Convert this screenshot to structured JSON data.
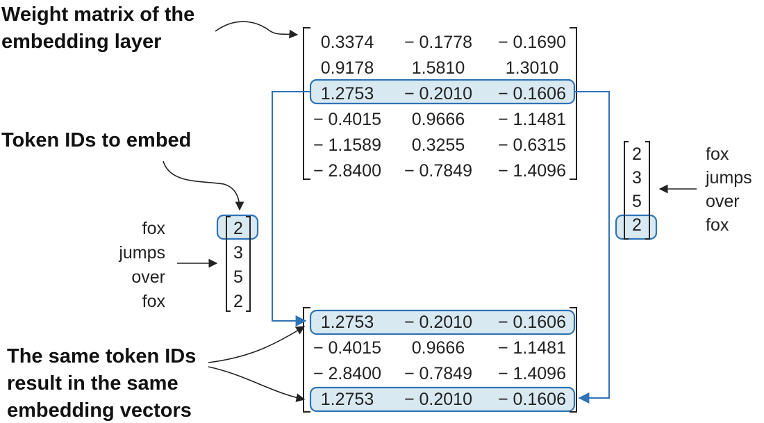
{
  "captions": {
    "weight_matrix": [
      "Weight matrix of the",
      "embedding layer"
    ],
    "token_ids": [
      "Token IDs to embed"
    ],
    "same_vectors": [
      "The same token IDs",
      "result in the same",
      "embedding vectors"
    ]
  },
  "weight_matrix": [
    [
      "0.3374",
      "− 0.1778",
      "− 0.1690"
    ],
    [
      "0.9178",
      "1.5810",
      "1.3010"
    ],
    [
      "1.2753",
      "− 0.2010",
      "− 0.1606"
    ],
    [
      "− 0.4015",
      "0.9666",
      "− 1.1481"
    ],
    [
      "− 1.1589",
      "0.3255",
      "− 0.6315"
    ],
    [
      "− 2.8400",
      "− 0.7849",
      "− 1.4096"
    ]
  ],
  "weight_highlight_row": 2,
  "tokens_left": {
    "words": [
      "fox",
      "jumps",
      "over",
      "fox"
    ],
    "ids": [
      "2",
      "3",
      "5",
      "2"
    ],
    "highlight_index": 0
  },
  "tokens_right": {
    "words": [
      "fox",
      "jumps",
      "over",
      "fox"
    ],
    "ids": [
      "2",
      "3",
      "5",
      "2"
    ],
    "highlight_index": 3
  },
  "output_matrix": [
    [
      "1.2753",
      "− 0.2010",
      "− 0.1606"
    ],
    [
      "− 0.4015",
      "0.9666",
      "− 1.1481"
    ],
    [
      "− 2.8400",
      "− 0.7849",
      "− 1.4096"
    ],
    [
      "1.2753",
      "− 0.2010",
      "− 0.1606"
    ]
  ],
  "output_highlight_rows": [
    0,
    3
  ],
  "colors": {
    "highlight_fill": "#d9e9f2",
    "highlight_stroke": "#2f73b5",
    "text": "#222222"
  }
}
